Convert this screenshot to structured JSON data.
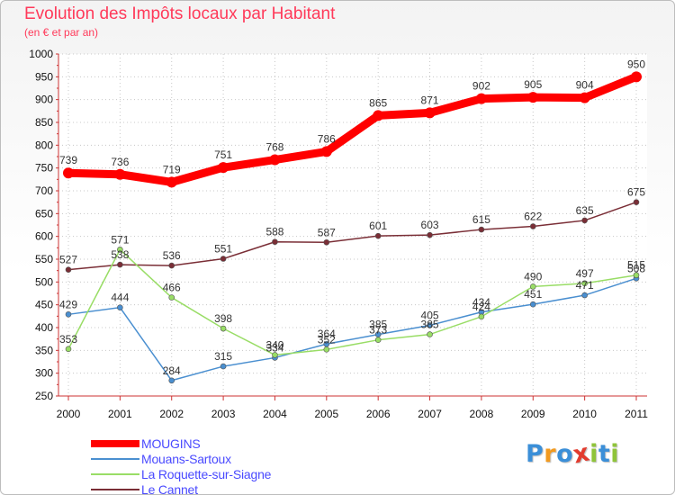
{
  "chart_data": {
    "type": "line",
    "title": "Evolution des Impôts locaux par Habitant",
    "subtitle": "(en € et par an)",
    "xlabel": "",
    "ylabel": "",
    "ylim": [
      250,
      1000
    ],
    "yticks": [
      250,
      300,
      350,
      400,
      450,
      500,
      550,
      600,
      650,
      700,
      750,
      800,
      850,
      900,
      950,
      1000
    ],
    "categories": [
      "2000",
      "2001",
      "2002",
      "2003",
      "2004",
      "2005",
      "2006",
      "2007",
      "2008",
      "2009",
      "2010",
      "2011"
    ],
    "legend_position": "bottom-left",
    "series": [
      {
        "name": "MOUGINS",
        "color": "#ff0000",
        "emphasis": true,
        "values": [
          739,
          736,
          719,
          751,
          768,
          786,
          865,
          871,
          902,
          905,
          904,
          950
        ],
        "value_labels": [
          "739",
          "736",
          "719",
          "751",
          "768",
          "786",
          "865",
          "871",
          "902",
          "905",
          "904",
          "950"
        ]
      },
      {
        "name": "Mouans-Sartoux",
        "color": "#4a8fd0",
        "emphasis": false,
        "values": [
          429,
          444,
          284,
          315,
          334,
          364,
          385,
          405,
          434,
          451,
          471,
          508
        ],
        "value_labels": [
          "429",
          "444",
          "284",
          "315",
          "334",
          "364",
          "385",
          "405",
          "434",
          "451",
          "471",
          "508"
        ]
      },
      {
        "name": "La Roquette-sur-Siagne",
        "color": "#99dd66",
        "emphasis": false,
        "values": [
          353,
          571,
          466,
          398,
          340,
          352,
          373,
          385,
          424,
          490,
          497,
          515
        ],
        "value_labels": [
          "353",
          "571",
          "466",
          "398",
          "340",
          "352",
          "373",
          "385",
          "424",
          "490",
          "497",
          "515"
        ]
      },
      {
        "name": "Le Cannet",
        "color": "#7a2e36",
        "emphasis": false,
        "values": [
          527,
          538,
          536,
          551,
          588,
          587,
          601,
          603,
          615,
          622,
          635,
          675
        ],
        "value_labels": [
          "527",
          "538",
          "536",
          "551",
          "588",
          "587",
          "601",
          "603",
          "615",
          "622",
          "635",
          "675"
        ]
      }
    ]
  },
  "brand": {
    "name": "Proxiti",
    "letter_colors": [
      "#3b8fd8",
      "#f29a1f",
      "#3b8fd8",
      "#e23b2e",
      "#8fc43a",
      "#3b8fd8",
      "#8fc43a"
    ]
  }
}
